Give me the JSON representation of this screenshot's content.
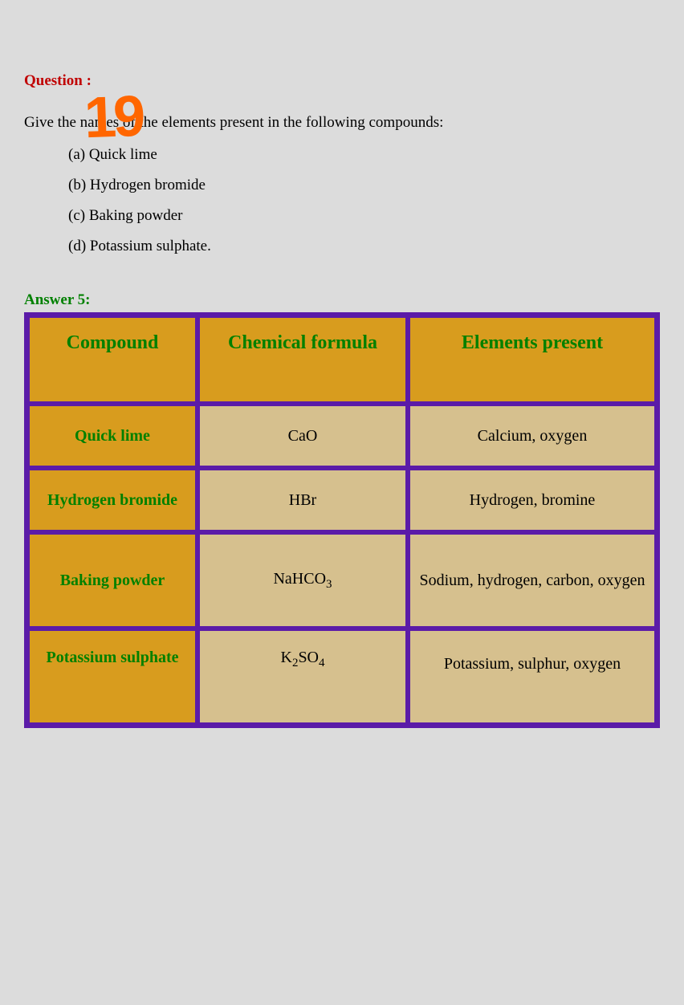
{
  "question": {
    "label": "Question  :",
    "handwritten_number": "19",
    "text": "Give the names of the elements present in the following compounds:",
    "options": [
      "(a) Quick lime",
      "(b) Hydrogen bromide",
      "(c) Baking powder",
      "(d) Potassium sulphate."
    ]
  },
  "answer": {
    "label": "Answer 5:",
    "table": {
      "headers": [
        "Compound",
        "Chemical formula",
        "Elements present"
      ],
      "rows": [
        {
          "compound": "Quick lime",
          "formula_html": "CaO",
          "elements": "Calcium, oxygen"
        },
        {
          "compound": "Hydrogen bromide",
          "formula_html": "HBr",
          "elements": "Hydrogen, bromine"
        },
        {
          "compound": "Baking powder",
          "formula_html": "NaHCO<sub>3</sub>",
          "elements": "Sodium, hydrogen, carbon, oxygen"
        },
        {
          "compound": "Potassium sulphate",
          "formula_html": "K<sub>2</sub>SO<sub>4</sub>",
          "elements": "Potassium, sulphur, oxygen"
        }
      ],
      "colors": {
        "border": "#5b1ba8",
        "header_bg": "#d89c1e",
        "header_text": "#008000",
        "compound_bg": "#d89c1e",
        "compound_text": "#008000",
        "data_bg": "#d6c08e",
        "data_text": "#000000"
      }
    }
  },
  "colors": {
    "page_bg": "#dcdcdc",
    "question_label": "#c00000",
    "answer_label": "#008000",
    "body_text": "#000000",
    "handwritten": "#ff6600"
  }
}
